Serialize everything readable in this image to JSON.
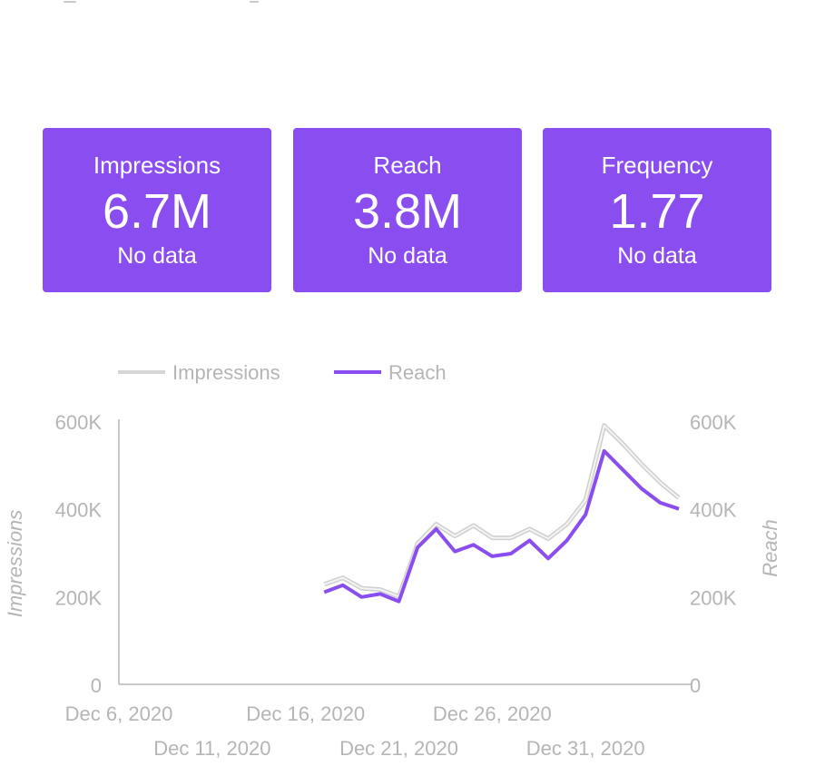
{
  "scorecards": [
    {
      "label": "Impressions",
      "value": "6.7M",
      "comparison": "No data"
    },
    {
      "label": "Reach",
      "value": "3.8M",
      "comparison": "No data"
    },
    {
      "label": "Frequency",
      "value": "1.77",
      "comparison": "No data"
    }
  ],
  "colors": {
    "card_bg": "#8a4df0",
    "impressions_line": "#d6d6d6",
    "reach_line": "#8a4df0",
    "axis_text": "#b5b5b5"
  },
  "chart_data": {
    "type": "line",
    "title": "",
    "legend_position": "top",
    "grid": false,
    "x": [
      "2020-12-17",
      "2020-12-18",
      "2020-12-19",
      "2020-12-20",
      "2020-12-21",
      "2020-12-22",
      "2020-12-23",
      "2020-12-24",
      "2020-12-25",
      "2020-12-26",
      "2020-12-27",
      "2020-12-28",
      "2020-12-29",
      "2020-12-30",
      "2020-12-31",
      "2021-01-01",
      "2021-01-02",
      "2021-01-03",
      "2021-01-04",
      "2021-01-05"
    ],
    "x_range": [
      "2020-12-06",
      "2021-01-05"
    ],
    "x_tick_labels": [
      "Dec 6, 2020",
      "Dec 11, 2020",
      "Dec 16, 2020",
      "Dec 21, 2020",
      "Dec 26, 2020",
      "Dec 31, 2020"
    ],
    "x_tick_dates": [
      "2020-12-06",
      "2020-12-11",
      "2020-12-16",
      "2020-12-21",
      "2020-12-26",
      "2020-12-31"
    ],
    "y_left": {
      "label": "Impressions",
      "range": [
        0,
        600000
      ],
      "ticks": [
        0,
        200000,
        400000,
        600000
      ],
      "tick_labels": [
        "0",
        "200K",
        "400K",
        "600K"
      ]
    },
    "y_right": {
      "label": "Reach",
      "range": [
        0,
        600000
      ],
      "ticks": [
        0,
        200000,
        400000,
        600000
      ],
      "tick_labels": [
        "0",
        "200K",
        "400K",
        "600K"
      ]
    },
    "series": [
      {
        "name": "Impressions",
        "axis": "left",
        "values": [
          228000,
          243000,
          219000,
          216000,
          200000,
          321000,
          365000,
          338000,
          362000,
          334000,
          334000,
          354000,
          332000,
          365000,
          420000,
          590000,
          548000,
          502000,
          460000,
          425000
        ]
      },
      {
        "name": "Reach",
        "axis": "right",
        "values": [
          210000,
          226000,
          199000,
          206000,
          189000,
          312000,
          354000,
          303000,
          318000,
          292000,
          298000,
          328000,
          287000,
          328000,
          387000,
          532000,
          489000,
          446000,
          414000,
          400000
        ]
      }
    ]
  }
}
